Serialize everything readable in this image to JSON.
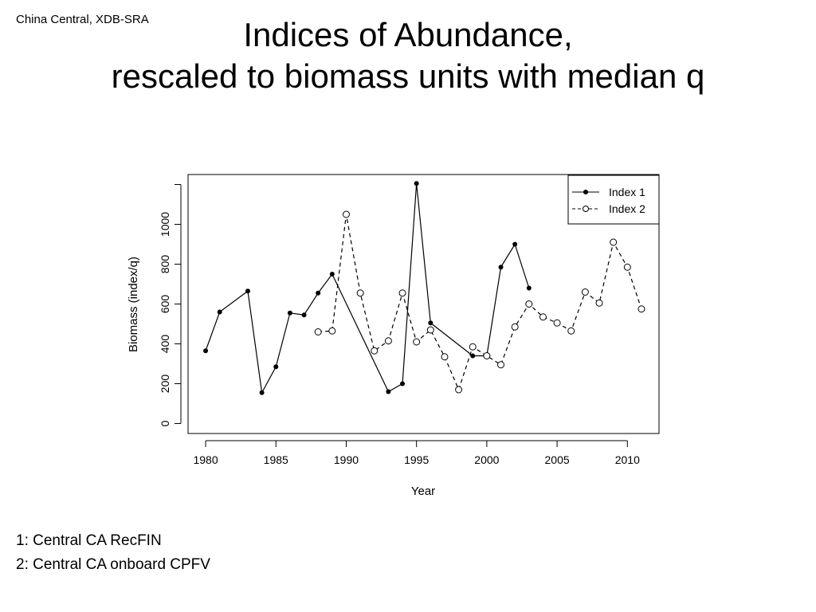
{
  "slide": {
    "corner_label": "China Central, XDB-SRA",
    "title_line1": "Indices of Abundance,",
    "title_line2": "rescaled to biomass units with median q",
    "footnotes": [
      "1: Central CA RecFIN",
      "2: Central CA onboard CPFV"
    ]
  },
  "chart_data": {
    "type": "line",
    "title": "",
    "xlabel": "Year",
    "ylabel": "Biomass (index/q)",
    "xlim": [
      1978.75,
      2012.25
    ],
    "ylim": [
      -50,
      1250
    ],
    "xticks": [
      1980,
      1985,
      1990,
      1995,
      2000,
      2005,
      2010
    ],
    "yticks": [
      0,
      200,
      400,
      600,
      800,
      1000
    ],
    "grid": false,
    "legend_position": "top-right",
    "series": [
      {
        "name": "Index 1",
        "style": "solid",
        "marker": "filled-circle",
        "color": "#000000",
        "x": [
          1980,
          1981,
          1983,
          1984,
          1985,
          1986,
          1987,
          1988,
          1989,
          1993,
          1994,
          1995,
          1996,
          1999,
          2000,
          2001,
          2002,
          2003
        ],
        "y": [
          365,
          560,
          665,
          155,
          285,
          555,
          545,
          655,
          750,
          160,
          200,
          1205,
          505,
          340,
          340,
          785,
          900,
          680
        ]
      },
      {
        "name": "Index 2",
        "style": "dashed",
        "marker": "open-circle",
        "color": "#000000",
        "x": [
          1988,
          1989,
          1990,
          1991,
          1992,
          1993,
          1994,
          1995,
          1996,
          1997,
          1998,
          1999,
          2000,
          2001,
          2002,
          2003,
          2004,
          2005,
          2006,
          2007,
          2008,
          2009,
          2010,
          2011
        ],
        "y": [
          460,
          465,
          1050,
          655,
          365,
          415,
          655,
          410,
          470,
          335,
          170,
          385,
          340,
          295,
          485,
          600,
          535,
          505,
          465,
          660,
          605,
          910,
          785,
          575
        ]
      }
    ]
  }
}
